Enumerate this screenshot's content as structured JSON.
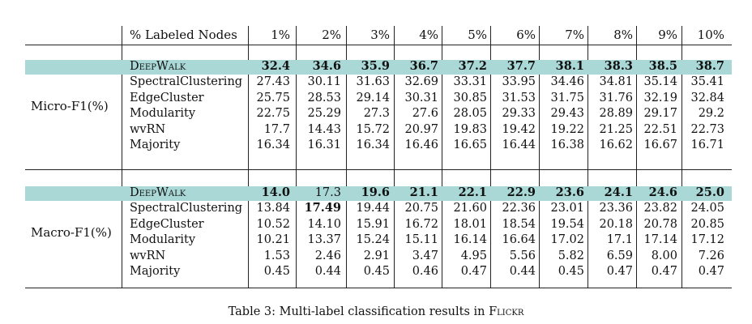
{
  "table": {
    "header": {
      "first": "% Labeled Nodes",
      "cols": [
        "1%",
        "2%",
        "3%",
        "4%",
        "5%",
        "6%",
        "7%",
        "8%",
        "9%",
        "10%"
      ]
    },
    "groups": [
      {
        "label": "Micro-F1(%)",
        "rows": [
          {
            "method": "DeepWalk",
            "values": [
              "32.4",
              "34.6",
              "35.9",
              "36.7",
              "37.2",
              "37.7",
              "38.1",
              "38.3",
              "38.5",
              "38.7"
            ],
            "bold": [
              true,
              true,
              true,
              true,
              true,
              true,
              true,
              true,
              true,
              true
            ],
            "highlight": true
          },
          {
            "method": "SpectralClustering",
            "values": [
              "27.43",
              "30.11",
              "31.63",
              "32.69",
              "33.31",
              "33.95",
              "34.46",
              "34.81",
              "35.14",
              "35.41"
            ],
            "bold": [
              false,
              false,
              false,
              false,
              false,
              false,
              false,
              false,
              false,
              false
            ],
            "highlight": false
          },
          {
            "method": "EdgeCluster",
            "values": [
              "25.75",
              "28.53",
              "29.14",
              "30.31",
              "30.85",
              "31.53",
              "31.75",
              "31.76",
              "32.19",
              "32.84"
            ],
            "bold": [
              false,
              false,
              false,
              false,
              false,
              false,
              false,
              false,
              false,
              false
            ],
            "highlight": false
          },
          {
            "method": "Modularity",
            "values": [
              "22.75",
              "25.29",
              "27.3",
              "27.6",
              "28.05",
              "29.33",
              "29.43",
              "28.89",
              "29.17",
              "29.2"
            ],
            "bold": [
              false,
              false,
              false,
              false,
              false,
              false,
              false,
              false,
              false,
              false
            ],
            "highlight": false
          },
          {
            "method": "wvRN",
            "values": [
              "17.7",
              "14.43",
              "15.72",
              "20.97",
              "19.83",
              "19.42",
              "19.22",
              "21.25",
              "22.51",
              "22.73"
            ],
            "bold": [
              false,
              false,
              false,
              false,
              false,
              false,
              false,
              false,
              false,
              false
            ],
            "highlight": false
          },
          {
            "method": "Majority",
            "values": [
              "16.34",
              "16.31",
              "16.34",
              "16.46",
              "16.65",
              "16.44",
              "16.38",
              "16.62",
              "16.67",
              "16.71"
            ],
            "bold": [
              false,
              false,
              false,
              false,
              false,
              false,
              false,
              false,
              false,
              false
            ],
            "highlight": false
          }
        ]
      },
      {
        "label": "Macro-F1(%)",
        "rows": [
          {
            "method": "DeepWalk",
            "values": [
              "14.0",
              "17.3",
              "19.6",
              "21.1",
              "22.1",
              "22.9",
              "23.6",
              "24.1",
              "24.6",
              "25.0"
            ],
            "bold": [
              true,
              false,
              true,
              true,
              true,
              true,
              true,
              true,
              true,
              true
            ],
            "highlight": true
          },
          {
            "method": "SpectralClustering",
            "values": [
              "13.84",
              "17.49",
              "19.44",
              "20.75",
              "21.60",
              "22.36",
              "23.01",
              "23.36",
              "23.82",
              "24.05"
            ],
            "bold": [
              false,
              true,
              false,
              false,
              false,
              false,
              false,
              false,
              false,
              false
            ],
            "highlight": false
          },
          {
            "method": "EdgeCluster",
            "values": [
              "10.52",
              "14.10",
              "15.91",
              "16.72",
              "18.01",
              "18.54",
              "19.54",
              "20.18",
              "20.78",
              "20.85"
            ],
            "bold": [
              false,
              false,
              false,
              false,
              false,
              false,
              false,
              false,
              false,
              false
            ],
            "highlight": false
          },
          {
            "method": "Modularity",
            "values": [
              "10.21",
              "13.37",
              "15.24",
              "15.11",
              "16.14",
              "16.64",
              "17.02",
              "17.1",
              "17.14",
              "17.12"
            ],
            "bold": [
              false,
              false,
              false,
              false,
              false,
              false,
              false,
              false,
              false,
              false
            ],
            "highlight": false
          },
          {
            "method": "wvRN",
            "values": [
              "1.53",
              "2.46",
              "2.91",
              "3.47",
              "4.95",
              "5.56",
              "5.82",
              "6.59",
              "8.00",
              "7.26"
            ],
            "bold": [
              false,
              false,
              false,
              false,
              false,
              false,
              false,
              false,
              false,
              false
            ],
            "highlight": false
          },
          {
            "method": "Majority",
            "values": [
              "0.45",
              "0.44",
              "0.45",
              "0.46",
              "0.47",
              "0.44",
              "0.45",
              "0.47",
              "0.47",
              "0.47"
            ],
            "bold": [
              false,
              false,
              false,
              false,
              false,
              false,
              false,
              false,
              false,
              false
            ],
            "highlight": false
          }
        ]
      }
    ]
  },
  "caption": {
    "prefix": "Table 3: Multi-label classification results in ",
    "dataset": "Flickr"
  },
  "colors": {
    "highlight": "#a9d8d6",
    "rule": "#222222"
  }
}
